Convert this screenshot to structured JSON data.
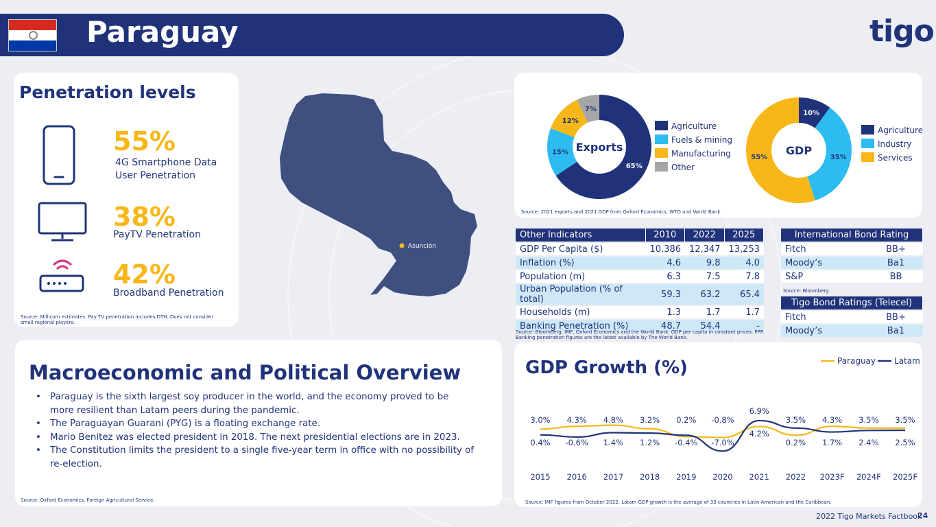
{
  "header": {
    "title": "Paraguay",
    "logo_text": "tigo"
  },
  "penetration": {
    "title": "Penetration levels",
    "items": [
      {
        "pct": "55%",
        "label1": "4G Smartphone Data",
        "label2": "User Penetration",
        "icon": "smartphone-icon"
      },
      {
        "pct": "38%",
        "label1": "PayTV Penetration",
        "label2": "",
        "icon": "tv-icon"
      },
      {
        "pct": "42%",
        "label1": "Broadband Penetration",
        "label2": "",
        "icon": "router-icon"
      }
    ],
    "source1": "Source: Millicom estimates. Pay TV penetration includes DTH.   Does not consider",
    "source2": "small regional players."
  },
  "map": {
    "city": "Asunción"
  },
  "macro": {
    "title": "Macroeconomic and Political Overview",
    "bullets": [
      "Paraguay is the sixth largest soy producer in the world, and the economy proved to be more resilient than Latam peers during the pandemic.",
      "The Paraguayan Guarani (PYG) is a floating exchange rate.",
      "Mario Benitez was elected president in 2018. The next presidential elections are in 2023.",
      "The Constitution limits the president to a single five-year term in office with no possibility of re-election."
    ],
    "source": "Source: Oxford Economics, Foreign Agricultural Service."
  },
  "colors": {
    "navy": "#20337a",
    "light_blue": "#2ebcf0",
    "yellow": "#f7b718",
    "gray": "#a6a6a6",
    "table_alt": "#cde9f7"
  },
  "pies": {
    "source": "Source: 2021 exports and 2021 GDP from Oxford Economics, WTO and World Bank."
  },
  "indicators": {
    "headers": [
      "Other Indicators",
      "2010",
      "2022",
      "2025"
    ],
    "rows": [
      [
        "GDP Per Capita ($)",
        "10,386",
        "12,347",
        "13,253"
      ],
      [
        "Inflation (%)",
        "4.6",
        "9.8",
        "4.0"
      ],
      [
        "Population (m)",
        "6.3",
        "7.5",
        "7.8"
      ],
      [
        "Urban Population (% of total)",
        "59.3",
        "63.2",
        "65.4"
      ],
      [
        "Households (m)",
        "1.3",
        "1.7",
        "1.7"
      ],
      [
        "Banking Penetration (%)",
        "48.7",
        "54.4",
        "-"
      ]
    ],
    "source1": "Source: Bloomberg, IMF, Oxford Economics and the World Bank. GDP per capita in constant prices, PPP.",
    "source2": "Banking penetration figures are the latest available by The World Bank."
  },
  "bond_rating": {
    "title": "International Bond Rating",
    "rows": [
      [
        "Fitch",
        "BB+"
      ],
      [
        "Moody’s",
        "Ba1"
      ],
      [
        "S&P",
        "BB"
      ]
    ],
    "source": "Source: Bloomberg"
  },
  "tigo_rating": {
    "title": "Tigo Bond Ratings (Telecel)",
    "rows": [
      [
        "Fitch",
        "BB+"
      ],
      [
        "Moody’s",
        "Ba1"
      ]
    ]
  },
  "chart_data": [
    {
      "type": "pie",
      "title": "Exports",
      "labels": [
        "Agriculture",
        "Fuels & mining",
        "Manufacturing",
        "Other"
      ],
      "values": [
        65,
        15,
        12,
        7
      ],
      "value_labels": [
        "65%",
        "15%",
        "12%",
        "7%"
      ],
      "colors": [
        "#20337a",
        "#2ebcf0",
        "#f7b718",
        "#a6a6a6"
      ],
      "donut": true,
      "legend": "right"
    },
    {
      "type": "pie",
      "title": "GDP",
      "labels": [
        "Agriculture",
        "Industry",
        "Services"
      ],
      "values": [
        10,
        35,
        55
      ],
      "value_labels": [
        "10%",
        "35%",
        "55%"
      ],
      "colors": [
        "#20337a",
        "#2ebcf0",
        "#f7b718"
      ],
      "donut": true,
      "legend": "right"
    },
    {
      "type": "line",
      "title": "GDP Growth (%)",
      "categories": [
        "2015",
        "2016",
        "2017",
        "2018",
        "2019",
        "2020",
        "2021",
        "2022",
        "2023F",
        "2024F",
        "2025F"
      ],
      "series": [
        {
          "name": "Paraguay",
          "color": "#f7b718",
          "values": [
            3.0,
            4.3,
            4.8,
            3.2,
            -0.4,
            -0.8,
            4.2,
            0.2,
            4.3,
            3.5,
            3.5
          ],
          "labels": [
            "3.0%",
            "4.3%",
            "4.8%",
            "3.2%",
            "-0.4%",
            "-0.8%",
            "4.2%",
            "0.2%",
            "4.3%",
            "3.5%",
            "3.5%"
          ]
        },
        {
          "name": "Latam",
          "color": "#20337a",
          "values": [
            0.4,
            -0.6,
            1.4,
            1.2,
            0.2,
            -7.0,
            6.9,
            3.5,
            1.7,
            2.4,
            2.5
          ],
          "labels": [
            "0.4%",
            "-0.6%",
            "1.4%",
            "1.2%",
            "0.2%",
            "-7.0%",
            "6.9%",
            "3.5%",
            "1.7%",
            "2.4%",
            "2.5%"
          ]
        }
      ],
      "legend": "top-right",
      "source": "Source: IMF figures from October 2022. Latam GDP growth is the average of 33 countries in Latin American and the Caribbean."
    }
  ],
  "footer": {
    "label": "2022 Tigo Markets Factbook",
    "page": "24"
  }
}
